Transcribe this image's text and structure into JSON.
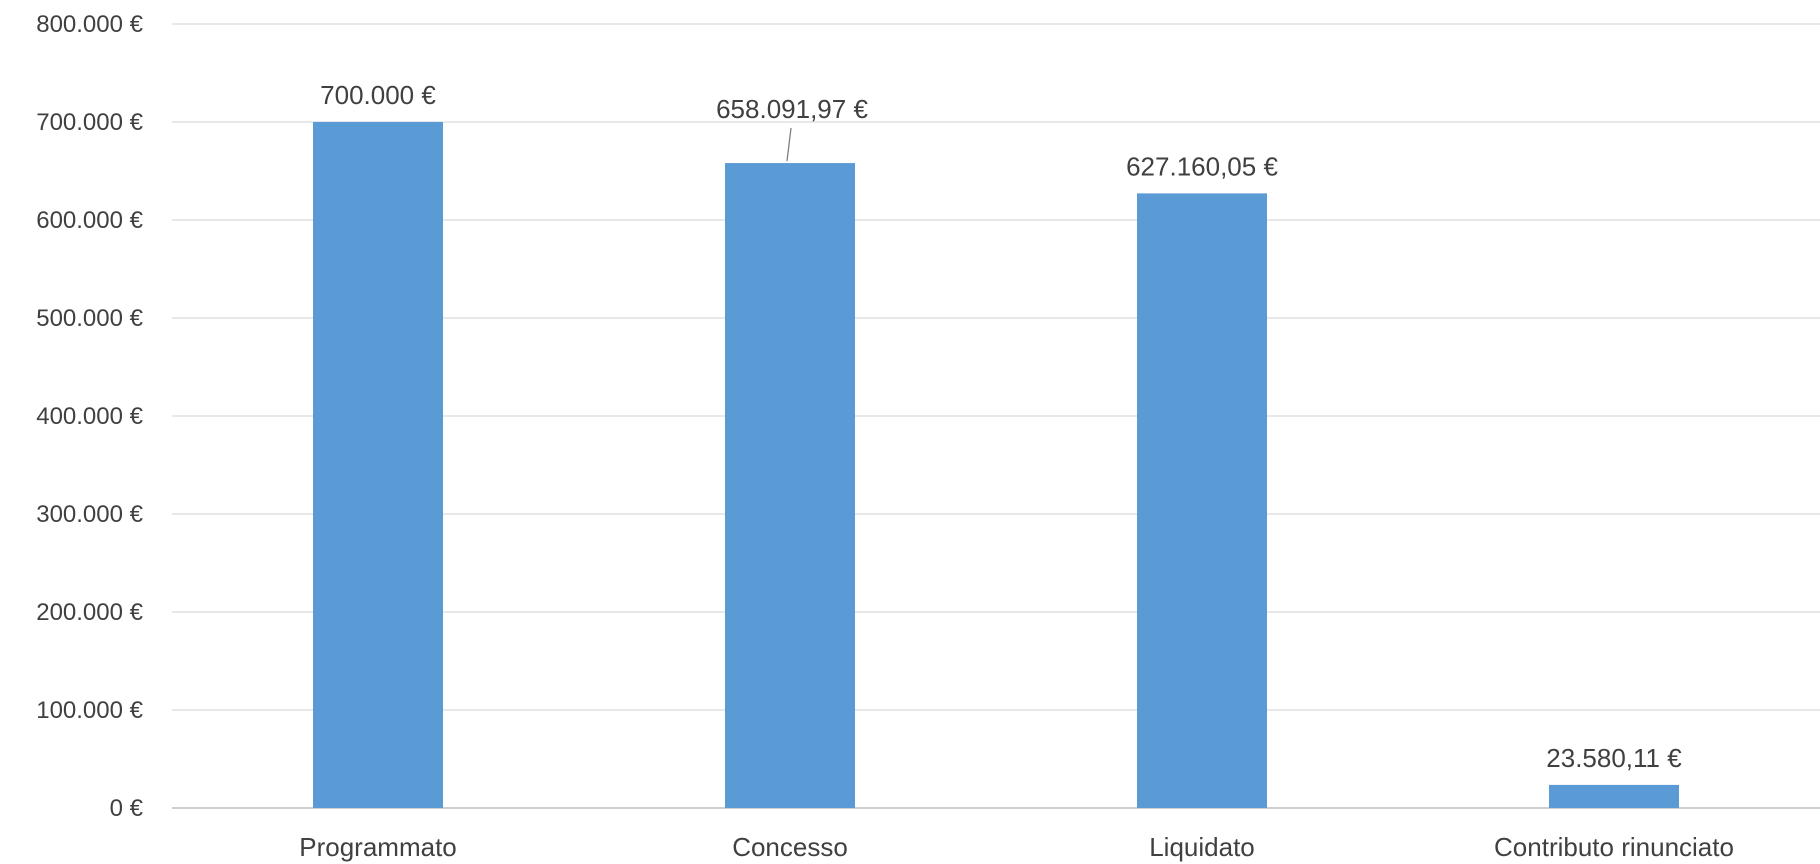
{
  "chart_data": {
    "type": "bar",
    "title": "",
    "xlabel": "",
    "ylabel": "",
    "categories": [
      "Programmato",
      "Concesso",
      "Liquidato",
      "Contributo rinunciato"
    ],
    "values": [
      700000,
      658091.97,
      627160.05,
      23580.11
    ],
    "data_labels": [
      "700.000 €",
      "658.091,97 €",
      "627.160,05 €",
      "23.580,11 €"
    ],
    "ylim": [
      0,
      800000
    ],
    "yticks": [
      0,
      100000,
      200000,
      300000,
      400000,
      500000,
      600000,
      700000,
      800000
    ],
    "ytick_labels": [
      "0 €",
      "100.000 €",
      "200.000 €",
      "300.000 €",
      "400.000 €",
      "500.000 €",
      "600.000 €",
      "700.000 €",
      "800.000 €"
    ],
    "grid": true,
    "legend": "none",
    "bar_color": "#5b9bd5"
  }
}
